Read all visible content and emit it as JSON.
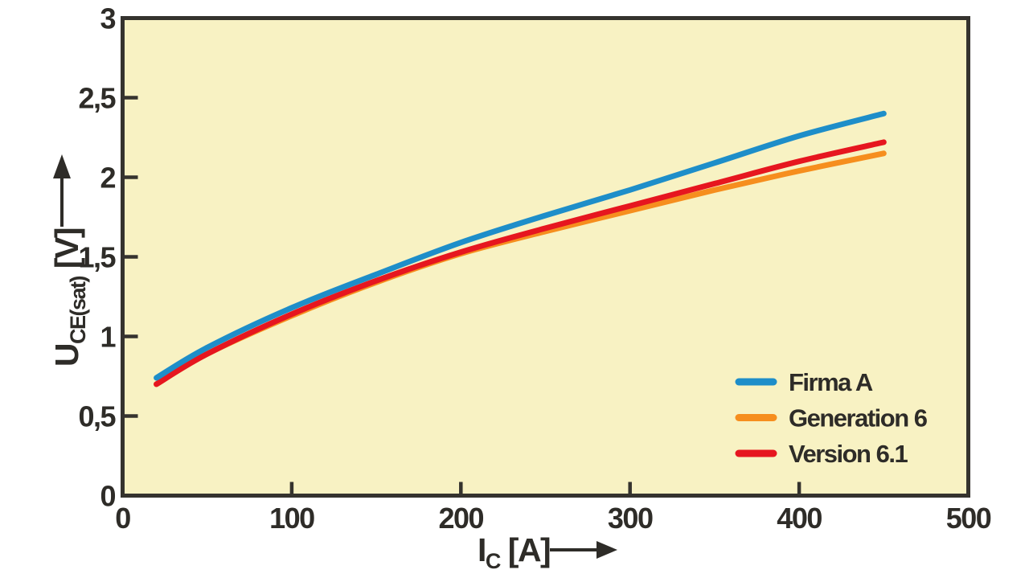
{
  "chart_data": {
    "type": "line",
    "title": "",
    "xlabel": {
      "main": "I",
      "sub": "C",
      "unit": " [A]"
    },
    "ylabel": {
      "main": "U",
      "sub": "CE(sat)",
      "unit": " [V]"
    },
    "xlim": [
      0,
      500
    ],
    "ylim": [
      0,
      3
    ],
    "grid": false,
    "decimal_separator": ",",
    "x_ticks": [
      {
        "v": 0,
        "label": "0"
      },
      {
        "v": 100,
        "label": "100"
      },
      {
        "v": 200,
        "label": "200"
      },
      {
        "v": 300,
        "label": "300"
      },
      {
        "v": 400,
        "label": "400"
      },
      {
        "v": 500,
        "label": "500"
      }
    ],
    "y_ticks": [
      {
        "v": 0,
        "label": "0"
      },
      {
        "v": 0.5,
        "label": "0,5"
      },
      {
        "v": 1,
        "label": "1"
      },
      {
        "v": 1.5,
        "label": "1,5"
      },
      {
        "v": 2,
        "label": "2"
      },
      {
        "v": 2.5,
        "label": "2,5"
      },
      {
        "v": 3,
        "label": "3"
      }
    ],
    "x": [
      20,
      50,
      100,
      150,
      200,
      250,
      300,
      350,
      400,
      450
    ],
    "series": [
      {
        "name": "Firma A",
        "color": "#1e8ec9",
        "values": [
          0.74,
          0.93,
          1.18,
          1.39,
          1.59,
          1.76,
          1.92,
          2.09,
          2.26,
          2.4
        ]
      },
      {
        "name": "Generation 6",
        "color": "#f68e1e",
        "values": [
          0.7,
          0.89,
          1.13,
          1.34,
          1.52,
          1.66,
          1.79,
          1.92,
          2.04,
          2.15
        ]
      },
      {
        "name": "Version 6.1",
        "color": "#e6161f",
        "values": [
          0.7,
          0.89,
          1.14,
          1.35,
          1.53,
          1.68,
          1.82,
          1.96,
          2.1,
          2.22
        ]
      }
    ],
    "draw_order": [
      1,
      2,
      0
    ],
    "legend": {
      "position": "inside-bottom-right",
      "entries": [
        "Firma A",
        "Generation 6",
        "Version 6.1"
      ]
    },
    "styles": {
      "plot_bg": "#f8f2c3",
      "border": "#35332e",
      "text": "#2e2c28"
    }
  }
}
